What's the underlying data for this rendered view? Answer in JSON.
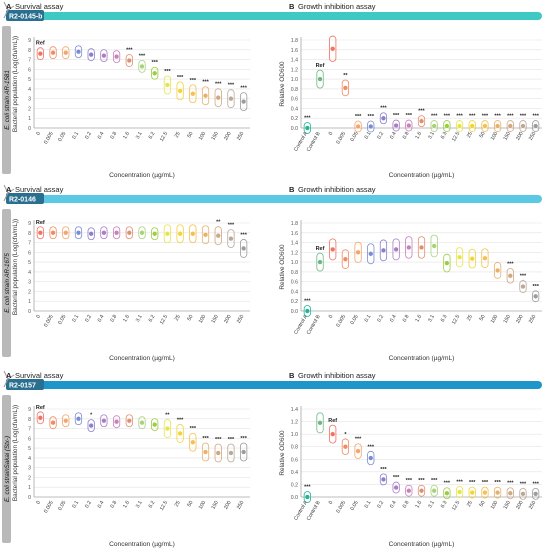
{
  "rows": [
    {
      "compound": "R2-0145-b",
      "strain_label": "E. coli strain AR-1581",
      "colors": {
        "bar": "#3ec9c4"
      },
      "survival": {
        "panel_letter": "A",
        "title": "Survival assay",
        "ylabel": "Bacterial population (Log(cfu/mL))",
        "xlabel": "Concentration (µg/mL)",
        "ylim": [
          0,
          9
        ],
        "yticks": [
          "0",
          "1",
          "2",
          "3",
          "4",
          "5",
          "6",
          "7",
          "8",
          "9"
        ],
        "categories": [
          "0",
          "0.005",
          "0.05",
          "0.1",
          "0.2",
          "0.4",
          "0.8",
          "1.6",
          "3.1",
          "6.2",
          "12.5",
          "25",
          "50",
          "100",
          "150",
          "200",
          "250"
        ],
        "means": [
          7.6,
          7.7,
          7.7,
          7.8,
          7.5,
          7.4,
          7.3,
          6.9,
          6.3,
          5.6,
          4.4,
          3.8,
          3.5,
          3.3,
          3.1,
          3.0,
          2.7
        ],
        "labels": [
          "Ref",
          "",
          "",
          "",
          "",
          "",
          "",
          "***",
          "***",
          "***",
          "***",
          "***",
          "***",
          "***",
          "***",
          "***",
          "***"
        ]
      },
      "growth": {
        "panel_letter": "B",
        "title": "Growth inhibition assay",
        "ylabel": "Relative OD600",
        "xlabel": "Concentration (µg/mL)",
        "ylim": [
          0,
          1.8
        ],
        "yticks": [
          "0.0",
          "0.2",
          "0.4",
          "0.6",
          "0.8",
          "1.0",
          "1.2",
          "1.4",
          "1.6",
          "1.8"
        ],
        "categories": [
          "Control A",
          "Control B",
          "0",
          "0.005",
          "0.05",
          "0.1",
          "0.2",
          "0.4",
          "0.8",
          "1.6",
          "3.1",
          "6.3",
          "12.5",
          "25",
          "50",
          "100",
          "150",
          "200",
          "250"
        ],
        "means": [
          0.0,
          1.0,
          1.62,
          0.82,
          0.03,
          0.03,
          0.2,
          0.05,
          0.05,
          0.14,
          0.04,
          0.04,
          0.04,
          0.04,
          0.04,
          0.04,
          0.04,
          0.04,
          0.04
        ],
        "labels": [
          "***",
          "Ref",
          "",
          "**",
          "***",
          "***",
          "***",
          "***",
          "***",
          "***",
          "***",
          "***",
          "***",
          "***",
          "***",
          "***",
          "***",
          "***",
          "***"
        ]
      }
    },
    {
      "compound": "R2-0146",
      "strain_label": "E. coli strain AR-1675",
      "colors": {
        "bar": "#5bc8e4"
      },
      "survival": {
        "panel_letter": "A",
        "title": "Survival assay",
        "ylabel": "Bacterial population (Log(cfu/mL))",
        "xlabel": "Concentration (µg/mL)",
        "ylim": [
          0,
          9
        ],
        "yticks": [
          "0",
          "1",
          "2",
          "3",
          "4",
          "5",
          "6",
          "7",
          "8",
          "9"
        ],
        "categories": [
          "0",
          "0.005",
          "0.05",
          "0.1",
          "0.2",
          "0.4",
          "0.8",
          "1.6",
          "3.1",
          "6.2",
          "12.5",
          "25",
          "50",
          "100",
          "150",
          "200",
          "250"
        ],
        "means": [
          8.0,
          8.0,
          8.0,
          8.0,
          7.9,
          8.0,
          8.0,
          8.0,
          8.0,
          7.9,
          7.9,
          7.9,
          7.9,
          7.8,
          7.7,
          7.4,
          6.4
        ],
        "labels": [
          "Ref",
          "",
          "",
          "",
          "",
          "",
          "",
          "",
          "",
          "",
          "",
          "",
          "",
          "",
          "**",
          "***",
          "***"
        ]
      },
      "growth": {
        "panel_letter": "B",
        "title": "Growth inhibition assay",
        "ylabel": "Relative OD600",
        "xlabel": "Concentration (µg/mL)",
        "ylim": [
          0,
          1.8
        ],
        "yticks": [
          "0.0",
          "0.2",
          "0.4",
          "0.6",
          "0.8",
          "1.0",
          "1.2",
          "1.4",
          "1.6",
          "1.8"
        ],
        "categories": [
          "Control A",
          "Control B",
          "0",
          "0.005",
          "0.05",
          "0.1",
          "0.2",
          "0.4",
          "0.8",
          "1.6",
          "3.1",
          "6.3",
          "12.5",
          "25",
          "50",
          "100",
          "150",
          "200",
          "250"
        ],
        "means": [
          0.0,
          1.0,
          1.26,
          1.06,
          1.2,
          1.17,
          1.24,
          1.26,
          1.3,
          1.3,
          1.33,
          0.98,
          1.1,
          1.07,
          1.08,
          0.83,
          0.72,
          0.5,
          0.3
        ],
        "labels": [
          "***",
          "Ref",
          "",
          "",
          "",
          "",
          "",
          "",
          "",
          "",
          "",
          "",
          "",
          "",
          "",
          "",
          "***",
          "***",
          "***"
        ]
      }
    },
    {
      "compound": "R2-0157",
      "strain_label": "E. coli strainSakai (Stx-)",
      "colors": {
        "bar": "#1e96c9"
      },
      "survival": {
        "panel_letter": "A",
        "title": "Survival assay",
        "ylabel": "Bacterial population (Log(cfu/mL))",
        "xlabel": "Concentration (µg/mL)",
        "ylim": [
          0,
          9
        ],
        "yticks": [
          "0",
          "1",
          "2",
          "3",
          "4",
          "5",
          "6",
          "7",
          "8",
          "9"
        ],
        "categories": [
          "0",
          "0.005",
          "0.05",
          "0.1",
          "0.2",
          "0.4",
          "0.8",
          "1.6",
          "3.1",
          "6.2",
          "12.5",
          "25",
          "50",
          "100",
          "150",
          "200",
          "250"
        ],
        "means": [
          8.1,
          7.6,
          7.8,
          8.0,
          7.3,
          7.8,
          7.7,
          7.8,
          7.6,
          7.4,
          7.0,
          6.5,
          5.6,
          4.6,
          4.5,
          4.5,
          4.6
        ],
        "labels": [
          "Ref",
          "",
          "",
          "",
          "*",
          "",
          "",
          "",
          "",
          "",
          "**",
          "***",
          "***",
          "***",
          "***",
          "***",
          "***"
        ]
      },
      "growth": {
        "panel_letter": "B",
        "title": "Growth inhibition assay",
        "ylabel": "Relative OD600",
        "xlabel": "Concentration (µg/mL)",
        "ylim": [
          0,
          1.4
        ],
        "yticks": [
          "0.0",
          "0.2",
          "0.4",
          "0.6",
          "0.8",
          "1.0",
          "1.2",
          "1.4"
        ],
        "categories": [
          "Control A",
          "Control B",
          "0",
          "0.005",
          "0.05",
          "0.1",
          "0.2",
          "0.4",
          "0.8",
          "1.6",
          "3.1",
          "6.3",
          "12.5",
          "25",
          "50",
          "100",
          "150",
          "200",
          "250"
        ],
        "means": [
          0.0,
          1.18,
          1.0,
          0.8,
          0.73,
          0.62,
          0.28,
          0.15,
          0.1,
          0.1,
          0.1,
          0.06,
          0.08,
          0.07,
          0.07,
          0.07,
          0.06,
          0.05,
          0.05
        ],
        "labels": [
          "***",
          "",
          "Ref",
          "*",
          "***",
          "***",
          "***",
          "***",
          "***",
          "***",
          "***",
          "***",
          "***",
          "***",
          "***",
          "***",
          "***",
          "***",
          "***"
        ]
      }
    }
  ],
  "chart_data": [
    {
      "type": "scatter",
      "title": "Survival assay",
      "ylabel": "Bacterial population (Log(cfu/mL))",
      "xlabel": "Concentration (µg/mL)",
      "ylim": [
        0,
        9
      ],
      "categories": [
        "0",
        "0.005",
        "0.05",
        "0.1",
        "0.2",
        "0.4",
        "0.8",
        "1.6",
        "3.1",
        "6.2",
        "12.5",
        "25",
        "50",
        "100",
        "150",
        "200",
        "250"
      ],
      "values": [
        7.6,
        7.7,
        7.7,
        7.8,
        7.5,
        7.4,
        7.3,
        6.9,
        6.3,
        5.6,
        4.4,
        3.8,
        3.5,
        3.3,
        3.1,
        3.0,
        2.7
      ]
    },
    {
      "type": "scatter",
      "title": "Growth inhibition assay",
      "ylabel": "Relative OD600",
      "xlabel": "Concentration (µg/mL)",
      "ylim": [
        0,
        1.8
      ],
      "categories": [
        "Control A",
        "Control B",
        "0",
        "0.005",
        "0.05",
        "0.1",
        "0.2",
        "0.4",
        "0.8",
        "1.6",
        "3.1",
        "6.3",
        "12.5",
        "25",
        "50",
        "100",
        "150",
        "200",
        "250"
      ],
      "values": [
        0.0,
        1.0,
        1.62,
        0.82,
        0.03,
        0.03,
        0.2,
        0.05,
        0.05,
        0.14,
        0.04,
        0.04,
        0.04,
        0.04,
        0.04,
        0.04,
        0.04,
        0.04,
        0.04
      ]
    },
    {
      "type": "scatter",
      "title": "Survival assay",
      "ylabel": "Bacterial population (Log(cfu/mL))",
      "xlabel": "Concentration (µg/mL)",
      "ylim": [
        0,
        9
      ],
      "categories": [
        "0",
        "0.005",
        "0.05",
        "0.1",
        "0.2",
        "0.4",
        "0.8",
        "1.6",
        "3.1",
        "6.2",
        "12.5",
        "25",
        "50",
        "100",
        "150",
        "200",
        "250"
      ],
      "values": [
        8.0,
        8.0,
        8.0,
        8.0,
        7.9,
        8.0,
        8.0,
        8.0,
        8.0,
        7.9,
        7.9,
        7.9,
        7.9,
        7.8,
        7.7,
        7.4,
        6.4
      ]
    },
    {
      "type": "scatter",
      "title": "Growth inhibition assay",
      "ylabel": "Relative OD600",
      "xlabel": "Concentration (µg/mL)",
      "ylim": [
        0,
        1.8
      ],
      "categories": [
        "Control A",
        "Control B",
        "0",
        "0.005",
        "0.05",
        "0.1",
        "0.2",
        "0.4",
        "0.8",
        "1.6",
        "3.1",
        "6.3",
        "12.5",
        "25",
        "50",
        "100",
        "150",
        "200",
        "250"
      ],
      "values": [
        0.0,
        1.0,
        1.26,
        1.06,
        1.2,
        1.17,
        1.24,
        1.26,
        1.3,
        1.3,
        1.33,
        0.98,
        1.1,
        1.07,
        1.08,
        0.83,
        0.72,
        0.5,
        0.3
      ]
    },
    {
      "type": "scatter",
      "title": "Survival assay",
      "ylabel": "Bacterial population (Log(cfu/mL))",
      "xlabel": "Concentration (µg/mL)",
      "ylim": [
        0,
        9
      ],
      "categories": [
        "0",
        "0.005",
        "0.05",
        "0.1",
        "0.2",
        "0.4",
        "0.8",
        "1.6",
        "3.1",
        "6.2",
        "12.5",
        "25",
        "50",
        "100",
        "150",
        "200",
        "250"
      ],
      "values": [
        8.1,
        7.6,
        7.8,
        8.0,
        7.3,
        7.8,
        7.7,
        7.8,
        7.6,
        7.4,
        7.0,
        6.5,
        5.6,
        4.6,
        4.5,
        4.5,
        4.6
      ]
    },
    {
      "type": "scatter",
      "title": "Growth inhibition assay",
      "ylabel": "Relative OD600",
      "xlabel": "Concentration (µg/mL)",
      "ylim": [
        0,
        1.4
      ],
      "categories": [
        "Control A",
        "Control B",
        "0",
        "0.005",
        "0.05",
        "0.1",
        "0.2",
        "0.4",
        "0.8",
        "1.6",
        "3.1",
        "6.3",
        "12.5",
        "25",
        "50",
        "100",
        "150",
        "200",
        "250"
      ],
      "values": [
        0.0,
        1.18,
        1.0,
        0.8,
        0.73,
        0.62,
        0.28,
        0.15,
        0.1,
        0.1,
        0.1,
        0.06,
        0.08,
        0.07,
        0.07,
        0.07,
        0.06,
        0.05,
        0.05
      ]
    }
  ]
}
